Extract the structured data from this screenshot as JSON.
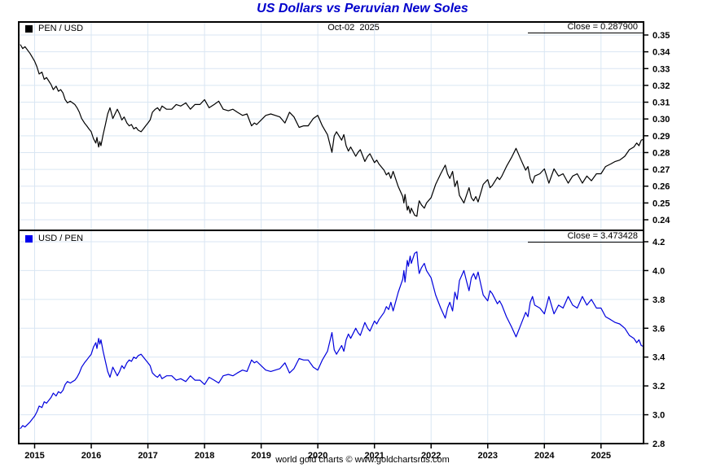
{
  "title": "US Dollars vs Peruvian New Soles",
  "footer": "world gold charts © www.goldchartsrus.com",
  "colors": {
    "title": "#0000cc",
    "top_line": "#000000",
    "bottom_line": "#0000dd",
    "grid": "#d9e6f3",
    "border": "#000000",
    "top_swatch": "#000000",
    "bottom_swatch": "#0000ee"
  },
  "xticks": [
    "2015",
    "2016",
    "2017",
    "2018",
    "2019",
    "2020",
    "2021",
    "2022",
    "2023",
    "2024",
    "2025"
  ],
  "top_panel": {
    "legend": "PEN / USD",
    "date_label": "Oct-02  2025",
    "close_label": "Close = 0.287900",
    "yticks": [
      "0.35",
      "0.34",
      "0.33",
      "0.32",
      "0.31",
      "0.30",
      "0.29",
      "0.28",
      "0.27",
      "0.26",
      "0.25",
      "0.24"
    ]
  },
  "bottom_panel": {
    "legend": "USD / PEN",
    "close_label": "Close = 3.473428",
    "yticks": [
      "4.2",
      "4.0",
      "3.8",
      "3.6",
      "3.4",
      "3.2",
      "3.0",
      "2.8"
    ]
  },
  "chart_data": [
    {
      "type": "line",
      "name": "PEN / USD",
      "panel": "top",
      "color": "#000000",
      "close": 0.2879,
      "close_date": "Oct-02 2025",
      "ylim": [
        0.24,
        0.35
      ],
      "xlim": [
        2014.72,
        2025.75
      ],
      "x": [
        2014.75,
        2014.79,
        2014.83,
        2014.92,
        2015.0,
        2015.04,
        2015.08,
        2015.13,
        2015.17,
        2015.21,
        2015.25,
        2015.29,
        2015.33,
        2015.38,
        2015.42,
        2015.46,
        2015.5,
        2015.54,
        2015.58,
        2015.63,
        2015.67,
        2015.71,
        2015.75,
        2015.79,
        2015.83,
        2015.88,
        2015.92,
        2015.96,
        2016.0,
        2016.04,
        2016.08,
        2016.1,
        2016.13,
        2016.15,
        2016.17,
        2016.21,
        2016.25,
        2016.29,
        2016.33,
        2016.38,
        2016.42,
        2016.46,
        2016.5,
        2016.54,
        2016.58,
        2016.63,
        2016.67,
        2016.71,
        2016.75,
        2016.79,
        2016.83,
        2016.88,
        2016.92,
        2016.96,
        2017.0,
        2017.04,
        2017.08,
        2017.13,
        2017.17,
        2017.21,
        2017.25,
        2017.33,
        2017.42,
        2017.5,
        2017.58,
        2017.67,
        2017.75,
        2017.83,
        2017.92,
        2018.0,
        2018.08,
        2018.17,
        2018.25,
        2018.33,
        2018.42,
        2018.5,
        2018.58,
        2018.67,
        2018.75,
        2018.83,
        2018.88,
        2018.92,
        2019.0,
        2019.08,
        2019.17,
        2019.25,
        2019.33,
        2019.42,
        2019.5,
        2019.58,
        2019.67,
        2019.75,
        2019.83,
        2019.92,
        2020.0,
        2020.08,
        2020.17,
        2020.25,
        2020.29,
        2020.33,
        2020.42,
        2020.46,
        2020.5,
        2020.54,
        2020.58,
        2020.67,
        2020.71,
        2020.75,
        2020.83,
        2020.88,
        2020.92,
        2021.0,
        2021.04,
        2021.08,
        2021.17,
        2021.21,
        2021.25,
        2021.29,
        2021.33,
        2021.42,
        2021.5,
        2021.52,
        2021.54,
        2021.58,
        2021.6,
        2021.63,
        2021.65,
        2021.71,
        2021.75,
        2021.77,
        2021.79,
        2021.83,
        2021.88,
        2021.92,
        2022.0,
        2022.08,
        2022.17,
        2022.25,
        2022.29,
        2022.33,
        2022.38,
        2022.42,
        2022.46,
        2022.5,
        2022.58,
        2022.63,
        2022.67,
        2022.71,
        2022.75,
        2022.79,
        2022.83,
        2022.88,
        2022.92,
        2023.0,
        2023.04,
        2023.08,
        2023.17,
        2023.21,
        2023.25,
        2023.33,
        2023.42,
        2023.5,
        2023.58,
        2023.67,
        2023.71,
        2023.75,
        2023.79,
        2023.83,
        2023.92,
        2024.0,
        2024.08,
        2024.17,
        2024.25,
        2024.33,
        2024.42,
        2024.5,
        2024.58,
        2024.67,
        2024.75,
        2024.83,
        2024.92,
        2025.0,
        2025.08,
        2025.17,
        2025.25,
        2025.33,
        2025.42,
        2025.5,
        2025.58,
        2025.63,
        2025.67,
        2025.71,
        2025.75
      ],
      "values": [
        0.3442,
        0.3419,
        0.343,
        0.339,
        0.3344,
        0.3311,
        0.3268,
        0.3279,
        0.3236,
        0.3247,
        0.3226,
        0.3205,
        0.3175,
        0.3195,
        0.3165,
        0.3175,
        0.3155,
        0.3115,
        0.3096,
        0.3106,
        0.3096,
        0.3086,
        0.3067,
        0.304,
        0.3003,
        0.2976,
        0.2959,
        0.2941,
        0.2924,
        0.2882,
        0.2857,
        0.289,
        0.2833,
        0.2865,
        0.2841,
        0.2907,
        0.2967,
        0.303,
        0.3067,
        0.3003,
        0.303,
        0.3058,
        0.303,
        0.2994,
        0.3012,
        0.2976,
        0.2959,
        0.2967,
        0.2941,
        0.295,
        0.2933,
        0.2924,
        0.2941,
        0.2959,
        0.2976,
        0.2994,
        0.304,
        0.3058,
        0.3067,
        0.3049,
        0.3077,
        0.3058,
        0.3058,
        0.3086,
        0.3077,
        0.3096,
        0.3058,
        0.3086,
        0.3086,
        0.3115,
        0.3067,
        0.3086,
        0.3106,
        0.3058,
        0.3049,
        0.3058,
        0.304,
        0.3021,
        0.303,
        0.2959,
        0.2976,
        0.2967,
        0.2994,
        0.3021,
        0.303,
        0.3021,
        0.3012,
        0.2976,
        0.304,
        0.3012,
        0.295,
        0.2959,
        0.2959,
        0.3003,
        0.3021,
        0.2959,
        0.2907,
        0.2801,
        0.2899,
        0.2924,
        0.2874,
        0.2907,
        0.2841,
        0.2809,
        0.2833,
        0.2778,
        0.2801,
        0.2817,
        0.2747,
        0.2778,
        0.2793,
        0.274,
        0.2755,
        0.2732,
        0.2695,
        0.2667,
        0.2681,
        0.2646,
        0.2688,
        0.2597,
        0.2538,
        0.25,
        0.2551,
        0.2457,
        0.2481,
        0.2439,
        0.2469,
        0.2427,
        0.2421,
        0.2475,
        0.2513,
        0.2488,
        0.2469,
        0.25,
        0.2532,
        0.2611,
        0.2674,
        0.2725,
        0.2674,
        0.2646,
        0.2688,
        0.2597,
        0.2632,
        0.2545,
        0.25,
        0.2551,
        0.2591,
        0.2532,
        0.2513,
        0.2538,
        0.2506,
        0.2564,
        0.2611,
        0.2639,
        0.2591,
        0.2604,
        0.2653,
        0.2639,
        0.266,
        0.2717,
        0.277,
        0.2825,
        0.2762,
        0.2695,
        0.2717,
        0.2646,
        0.2618,
        0.266,
        0.2674,
        0.2703,
        0.2618,
        0.2703,
        0.266,
        0.2674,
        0.2618,
        0.266,
        0.2674,
        0.2618,
        0.266,
        0.2632,
        0.2674,
        0.2674,
        0.2717,
        0.2732,
        0.2747,
        0.2755,
        0.2778,
        0.2817,
        0.2833,
        0.2857,
        0.2841,
        0.2874,
        0.2879
      ]
    },
    {
      "type": "line",
      "name": "USD / PEN",
      "panel": "bottom",
      "color": "#0000dd",
      "close": 3.473428,
      "close_date": "Oct-02 2025",
      "ylim": [
        2.8,
        4.2
      ],
      "xlim": [
        2014.72,
        2025.75
      ],
      "x": [
        2014.75,
        2014.79,
        2014.83,
        2014.92,
        2015.0,
        2015.04,
        2015.08,
        2015.13,
        2015.17,
        2015.21,
        2015.25,
        2015.29,
        2015.33,
        2015.38,
        2015.42,
        2015.46,
        2015.5,
        2015.54,
        2015.58,
        2015.63,
        2015.67,
        2015.71,
        2015.75,
        2015.79,
        2015.83,
        2015.88,
        2015.92,
        2015.96,
        2016.0,
        2016.04,
        2016.08,
        2016.1,
        2016.13,
        2016.15,
        2016.17,
        2016.21,
        2016.25,
        2016.29,
        2016.33,
        2016.38,
        2016.42,
        2016.46,
        2016.5,
        2016.54,
        2016.58,
        2016.63,
        2016.67,
        2016.71,
        2016.75,
        2016.79,
        2016.83,
        2016.88,
        2016.92,
        2016.96,
        2017.0,
        2017.04,
        2017.08,
        2017.13,
        2017.17,
        2017.21,
        2017.25,
        2017.33,
        2017.42,
        2017.5,
        2017.58,
        2017.67,
        2017.75,
        2017.83,
        2017.92,
        2018.0,
        2018.08,
        2018.17,
        2018.25,
        2018.33,
        2018.42,
        2018.5,
        2018.58,
        2018.67,
        2018.75,
        2018.83,
        2018.88,
        2018.92,
        2019.0,
        2019.08,
        2019.17,
        2019.25,
        2019.33,
        2019.42,
        2019.5,
        2019.58,
        2019.67,
        2019.75,
        2019.83,
        2019.92,
        2020.0,
        2020.08,
        2020.17,
        2020.25,
        2020.29,
        2020.33,
        2020.42,
        2020.46,
        2020.5,
        2020.54,
        2020.58,
        2020.67,
        2020.71,
        2020.75,
        2020.83,
        2020.88,
        2020.92,
        2021.0,
        2021.04,
        2021.08,
        2021.17,
        2021.21,
        2021.25,
        2021.29,
        2021.33,
        2021.42,
        2021.5,
        2021.52,
        2021.54,
        2021.58,
        2021.6,
        2021.63,
        2021.65,
        2021.71,
        2021.75,
        2021.77,
        2021.79,
        2021.83,
        2021.88,
        2021.92,
        2022.0,
        2022.08,
        2022.17,
        2022.25,
        2022.29,
        2022.33,
        2022.38,
        2022.42,
        2022.46,
        2022.5,
        2022.58,
        2022.63,
        2022.67,
        2022.71,
        2022.75,
        2022.79,
        2022.83,
        2022.88,
        2022.92,
        2023.0,
        2023.04,
        2023.08,
        2023.17,
        2023.21,
        2023.25,
        2023.33,
        2023.42,
        2023.5,
        2023.58,
        2023.67,
        2023.71,
        2023.75,
        2023.79,
        2023.83,
        2023.92,
        2024.0,
        2024.08,
        2024.17,
        2024.25,
        2024.33,
        2024.42,
        2024.5,
        2024.58,
        2024.67,
        2024.75,
        2024.83,
        2024.92,
        2025.0,
        2025.08,
        2025.17,
        2025.25,
        2025.33,
        2025.42,
        2025.5,
        2025.58,
        2025.63,
        2025.67,
        2025.71,
        2025.75
      ],
      "values": [
        2.905,
        2.925,
        2.915,
        2.95,
        2.99,
        3.02,
        3.06,
        3.05,
        3.09,
        3.08,
        3.1,
        3.12,
        3.15,
        3.13,
        3.16,
        3.15,
        3.17,
        3.21,
        3.23,
        3.22,
        3.23,
        3.24,
        3.26,
        3.29,
        3.33,
        3.36,
        3.38,
        3.4,
        3.42,
        3.47,
        3.5,
        3.46,
        3.53,
        3.49,
        3.52,
        3.44,
        3.37,
        3.3,
        3.26,
        3.33,
        3.3,
        3.27,
        3.3,
        3.34,
        3.32,
        3.36,
        3.38,
        3.37,
        3.4,
        3.39,
        3.41,
        3.42,
        3.4,
        3.38,
        3.36,
        3.34,
        3.29,
        3.27,
        3.26,
        3.28,
        3.25,
        3.27,
        3.27,
        3.24,
        3.25,
        3.23,
        3.27,
        3.24,
        3.24,
        3.21,
        3.26,
        3.24,
        3.22,
        3.27,
        3.28,
        3.27,
        3.29,
        3.31,
        3.3,
        3.38,
        3.36,
        3.37,
        3.34,
        3.31,
        3.3,
        3.31,
        3.32,
        3.36,
        3.29,
        3.32,
        3.39,
        3.38,
        3.38,
        3.33,
        3.31,
        3.38,
        3.44,
        3.57,
        3.45,
        3.42,
        3.48,
        3.44,
        3.52,
        3.56,
        3.53,
        3.6,
        3.57,
        3.55,
        3.64,
        3.6,
        3.58,
        3.65,
        3.63,
        3.66,
        3.71,
        3.75,
        3.73,
        3.78,
        3.72,
        3.85,
        3.94,
        4.0,
        3.92,
        4.07,
        4.03,
        4.1,
        4.05,
        4.12,
        4.13,
        4.04,
        3.98,
        4.02,
        4.05,
        4.0,
        3.95,
        3.83,
        3.74,
        3.67,
        3.74,
        3.78,
        3.72,
        3.85,
        3.8,
        3.93,
        4.0,
        3.92,
        3.86,
        3.95,
        3.98,
        3.94,
        3.99,
        3.9,
        3.83,
        3.79,
        3.86,
        3.84,
        3.77,
        3.79,
        3.76,
        3.68,
        3.61,
        3.54,
        3.62,
        3.71,
        3.68,
        3.78,
        3.82,
        3.76,
        3.74,
        3.7,
        3.82,
        3.7,
        3.76,
        3.74,
        3.82,
        3.76,
        3.74,
        3.82,
        3.76,
        3.8,
        3.74,
        3.74,
        3.68,
        3.66,
        3.64,
        3.63,
        3.6,
        3.55,
        3.53,
        3.5,
        3.52,
        3.48,
        3.4734
      ]
    }
  ]
}
